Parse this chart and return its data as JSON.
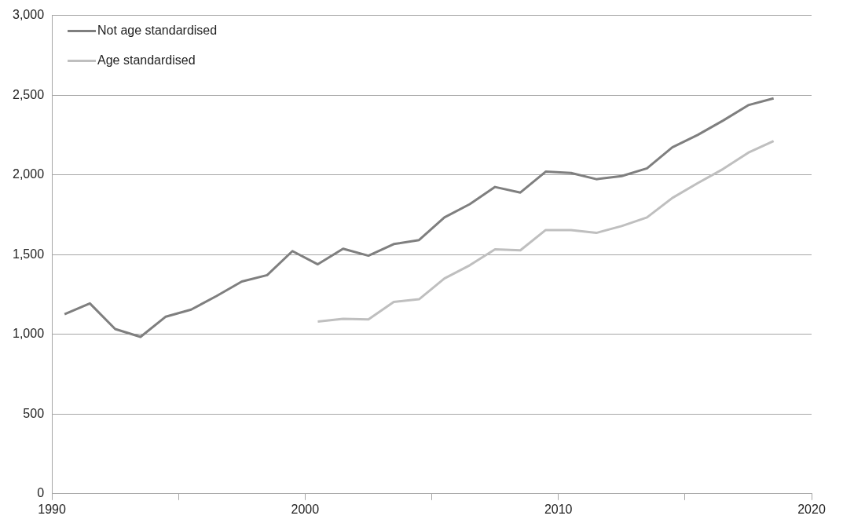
{
  "chart_data": {
    "type": "line",
    "xlim": [
      1990,
      2020
    ],
    "xticks": [
      1990,
      {
        "value": 1995,
        "label": null
      },
      2000,
      {
        "value": 2005,
        "label": null
      },
      2010,
      {
        "value": 2015,
        "label": null
      },
      2020
    ],
    "ylim": [
      0,
      3000
    ],
    "yticks": [
      0,
      500,
      {
        "value": 1000,
        "label": "1,000"
      },
      {
        "value": 1500,
        "label": "1,500"
      },
      {
        "value": 2000,
        "label": "2,000"
      },
      {
        "value": 2500,
        "label": "2,500"
      },
      {
        "value": 3000,
        "label": "3,000"
      }
    ],
    "grid": "y",
    "legend": "top left",
    "marker": "none",
    "line_style": "solid",
    "series": [
      {
        "name": "Not age standardised",
        "color": "#7f7f7f",
        "x": [
          1990.5,
          1991.5,
          1992.5,
          1993.5,
          1994.5,
          1995.5,
          1996.5,
          1997.5,
          1998.5,
          1999.5,
          2000.5,
          2001.5,
          2002.5,
          2003.5,
          2004.5,
          2005.5,
          2006.5,
          2007.5,
          2008.5,
          2009.5,
          2010.5,
          2011.5,
          2012.5,
          2013.5,
          2014.5,
          2015.5,
          2016.5,
          2017.5,
          2018.5
        ],
        "values": [
          1126,
          1194,
          1033,
          984,
          1111,
          1155,
          1240,
          1331,
          1371,
          1522,
          1439,
          1537,
          1493,
          1566,
          1591,
          1733,
          1816,
          1924,
          1889,
          2020,
          2012,
          1973,
          1992,
          2041,
          2173,
          2250,
          2340,
          2437,
          2480
        ]
      },
      {
        "name": "Age standardised",
        "color": "#bfbfbf",
        "x": [
          2000.5,
          2001.5,
          2002.5,
          2003.5,
          2004.5,
          2005.5,
          2006.5,
          2007.5,
          2008.5,
          2009.5,
          2010.5,
          2011.5,
          2012.5,
          2013.5,
          2014.5,
          2015.5,
          2016.5,
          2017.5,
          2018.5
        ],
        "values": [
          1080,
          1097,
          1093,
          1203,
          1220,
          1350,
          1433,
          1533,
          1527,
          1654,
          1654,
          1636,
          1679,
          1733,
          1855,
          1948,
          2036,
          2139,
          2212
        ]
      }
    ]
  }
}
